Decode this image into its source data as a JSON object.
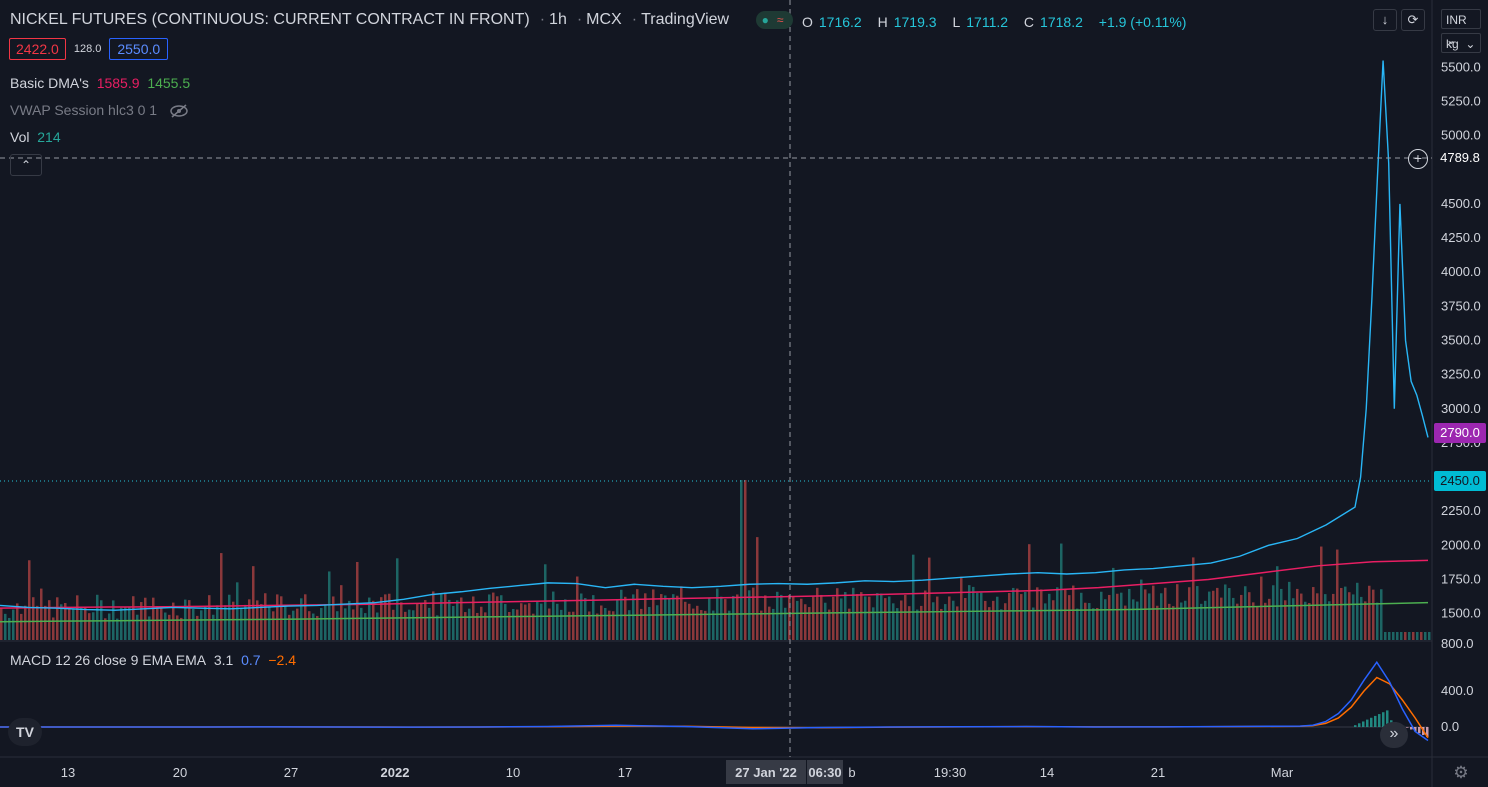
{
  "header": {
    "symbol": "NICKEL FUTURES (CONTINUOUS: CURRENT CONTRACT IN FRONT)",
    "interval": "1h",
    "exchange": "MCX",
    "source": "TradingView",
    "ohlc": {
      "o_label": "O",
      "o": "1716.2",
      "h_label": "H",
      "h": "1719.3",
      "l_label": "L",
      "l": "1711.2",
      "c_label": "C",
      "c": "1718.2",
      "change": "+1.9 (+0.11%)"
    }
  },
  "quote": {
    "bid": "2422.0",
    "spread": "128.0",
    "ask": "2550.0"
  },
  "indicators": {
    "dma": {
      "label": "Basic DMA's",
      "v1": "1585.9",
      "v2": "1455.5"
    },
    "vwap": {
      "label": "VWAP Session hlc3 0 1"
    },
    "vol": {
      "label": "Vol",
      "value": "214"
    },
    "macd": {
      "label": "MACD 12 26 close 9 EMA EMA",
      "hist": "3.1",
      "macd": "0.7",
      "signal": "−2.4"
    }
  },
  "right_panel": {
    "currency": "INR",
    "unit": "kg",
    "crosshair_price": "4789.8",
    "last_price": "2790.0",
    "line_price": "2450.0"
  },
  "icons": {
    "download": "download-icon",
    "refresh": "refresh-icon",
    "collapse": "chevron-up-icon",
    "hidden": "eye-off-icon",
    "logo": "tradingview-logo-icon",
    "scroll": "double-chevron-right-icon",
    "settings": "gear-icon",
    "add": "plus-circle-icon"
  },
  "colors": {
    "bg": "#131722",
    "up": "#26a69a",
    "down": "#ef5350",
    "price_line": "#29b6f6",
    "dma_fast": "#e91e63",
    "dma_slow": "#4caf50",
    "macd": "#2962ff",
    "signal": "#ff6d00",
    "last_price": "#9c27b0"
  },
  "chart_data": {
    "type": "line",
    "price_axis_ticks": [
      1500.0,
      1750.0,
      2000.0,
      2250.0,
      2500.0,
      2750.0,
      3000.0,
      3250.0,
      3500.0,
      3750.0,
      4000.0,
      4250.0,
      4500.0,
      5000.0,
      5250.0,
      5500.0
    ],
    "price_axis_labels": [
      "1500.0",
      "1750.0",
      "2000.0",
      "2250.0",
      "2500.0",
      "2750.0",
      "3000.0",
      "3250.0",
      "3500.0",
      "3750.0",
      "4000.0",
      "4250.0",
      "4500.0",
      "5000.0",
      "5250.0",
      "5500.0"
    ],
    "vol_axis_label": "800.0",
    "macd_axis_ticks": [
      0,
      400
    ],
    "macd_axis_labels": [
      "0.0",
      "400.0"
    ],
    "time_labels": [
      "13",
      "20",
      "27",
      "2022",
      "10",
      "17",
      "27 Jan '22",
      "06:30",
      "b",
      "19:30",
      "14",
      "21",
      "Mar"
    ],
    "close_series": [
      1560,
      1545,
      1540,
      1530,
      1525,
      1535,
      1545,
      1540,
      1535,
      1545,
      1555,
      1560,
      1570,
      1580,
      1605,
      1640,
      1660,
      1685,
      1705,
      1725,
      1720,
      1690,
      1715,
      1700,
      1690,
      1700,
      1715,
      1720,
      1715,
      1725,
      1740,
      1735,
      1745,
      1760,
      1775,
      1790,
      1800,
      1790,
      1800,
      1820,
      1830,
      1850,
      1870,
      1920,
      2000,
      2050,
      2150,
      2280,
      2500,
      3000,
      3800,
      4700,
      5550,
      4800,
      3000,
      4500,
      3500,
      3200,
      3100,
      2950,
      2790
    ],
    "dma_fast_series": [
      1540,
      1545,
      1548,
      1550,
      1555,
      1560,
      1565,
      1570,
      1578,
      1585,
      1592,
      1600,
      1608,
      1615,
      1622,
      1630,
      1640,
      1650,
      1660,
      1670,
      1690,
      1720,
      1750,
      1800,
      1850,
      1880,
      1890
    ],
    "dma_slow_series": [
      1440,
      1445,
      1448,
      1452,
      1456,
      1460,
      1465,
      1470,
      1475,
      1480,
      1485,
      1490,
      1495,
      1500,
      1505,
      1510,
      1515,
      1520,
      1525,
      1530,
      1540,
      1550,
      1560,
      1570,
      1580
    ],
    "macd_series": [
      0,
      0,
      0,
      0,
      2,
      0,
      -2,
      0,
      5,
      20,
      5,
      -20,
      -5,
      0,
      3,
      5,
      0,
      2,
      5,
      10,
      20,
      60,
      150,
      300,
      520,
      720,
      500,
      200,
      -50,
      -150
    ],
    "signal_series": [
      0,
      0,
      0,
      0,
      1,
      0,
      -1,
      0,
      3,
      10,
      8,
      -5,
      -8,
      -2,
      2,
      4,
      2,
      2,
      4,
      8,
      15,
      40,
      100,
      220,
      400,
      550,
      480,
      300,
      100,
      -120
    ],
    "ranges": {
      "price": [
        1380,
        5700
      ],
      "macd": [
        -200,
        800
      ]
    }
  }
}
